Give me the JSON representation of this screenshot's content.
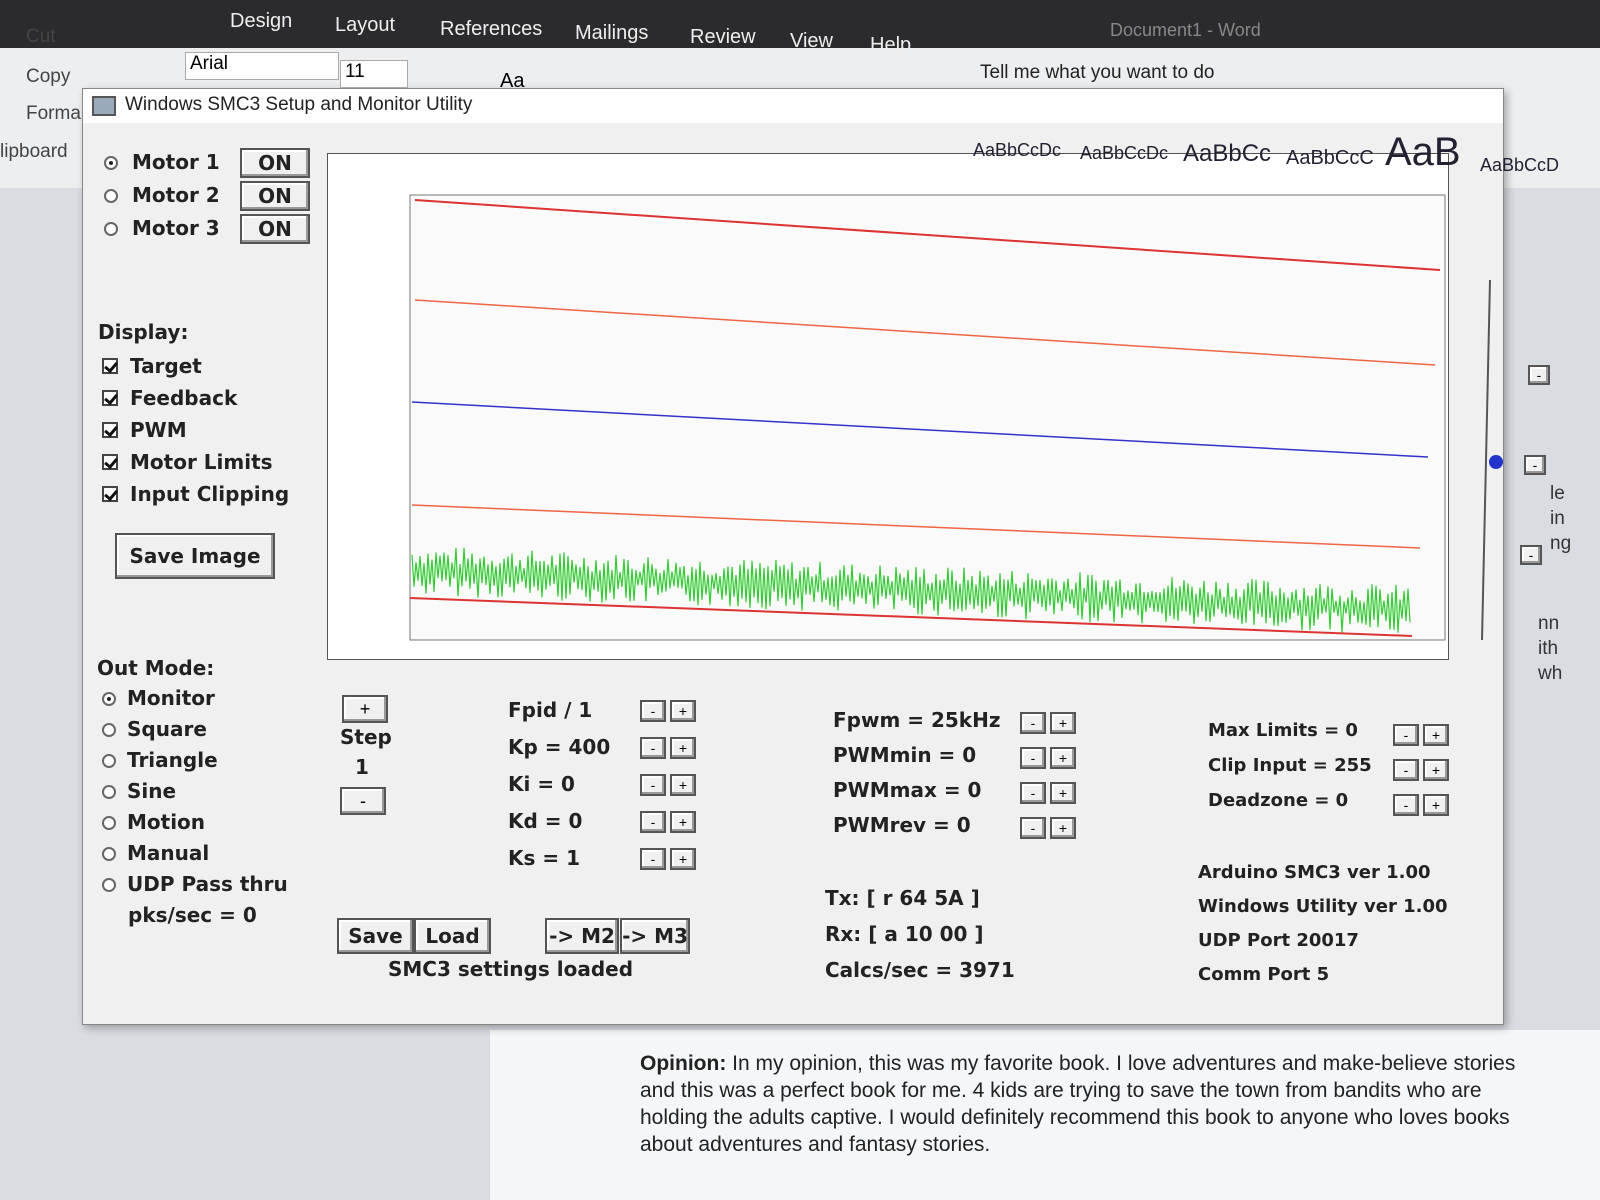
{
  "word": {
    "tabs": [
      "Design",
      "Layout",
      "References",
      "Mailings",
      "Review",
      "View",
      "Help"
    ],
    "search": "Tell me what you want to do",
    "window_title": "Document1 - Word",
    "clipboard": [
      "Cut",
      "Copy",
      "Forma",
      "lipboard"
    ],
    "font": "Arial",
    "font_size": "11",
    "change_case": "Aa",
    "styles": [
      "AaBbCcDc",
      "AaBbCcDc",
      "AaBbCc",
      "AaBbCcC",
      "AaB",
      "AaBbCcD"
    ],
    "side_fragments": [
      "le",
      "in",
      "ng",
      "nn",
      "ith",
      "wh"
    ]
  },
  "dialog": {
    "title": "Windows SMC3 Setup and Monitor Utility",
    "motors": [
      {
        "label": "Motor 1",
        "button": "ON"
      },
      {
        "label": "Motor 2",
        "button": "ON"
      },
      {
        "label": "Motor 3",
        "button": "ON"
      }
    ],
    "display": {
      "label": "Display:",
      "options": [
        "Target",
        "Feedback",
        "PWM",
        "Motor Limits",
        "Input Clipping"
      ]
    },
    "save_image": "Save Image",
    "out_mode": {
      "label": "Out Mode:",
      "options": [
        "Monitor",
        "Square",
        "Triangle",
        "Sine",
        "Motion",
        "Manual",
        "UDP Pass thru"
      ]
    },
    "pks": "pks/sec = 0",
    "step": {
      "plus": "+",
      "label": "Step",
      "value": "1",
      "minus": "-"
    },
    "pid": [
      "Fpid / 1",
      "Kp = 400",
      "Ki = 0",
      "Kd = 0",
      "Ks = 1"
    ],
    "pwm": [
      "Fpwm = 25kHz",
      "PWMmin = 0",
      "PWMmax = 0",
      "PWMrev = 0"
    ],
    "limits": [
      "Max Limits = 0",
      "Clip Input = 255",
      "Deadzone = 0"
    ],
    "info": [
      "Arduino SMC3 ver 1.00",
      "Windows Utility ver 1.00",
      "UDP Port 20017",
      "Comm Port 5"
    ],
    "buttons": [
      "Save",
      "Load",
      "-> M2",
      "-> M3"
    ],
    "status": "SMC3 settings loaded",
    "comm": [
      "Tx: [ r 64 5A ]",
      "Rx: [ a 10 00 ]",
      "Calcs/sec = 3971"
    ]
  },
  "document": {
    "lead": "Opinion:",
    "text": "In my opinion, this was my favorite book. I love adventures and make-believe stories and this was a perfect book for me. 4 kids are trying to save the town from bandits who are holding the adults captive. I would definitely recommend this book to anyone who loves books about adventures and fantasy stories."
  }
}
